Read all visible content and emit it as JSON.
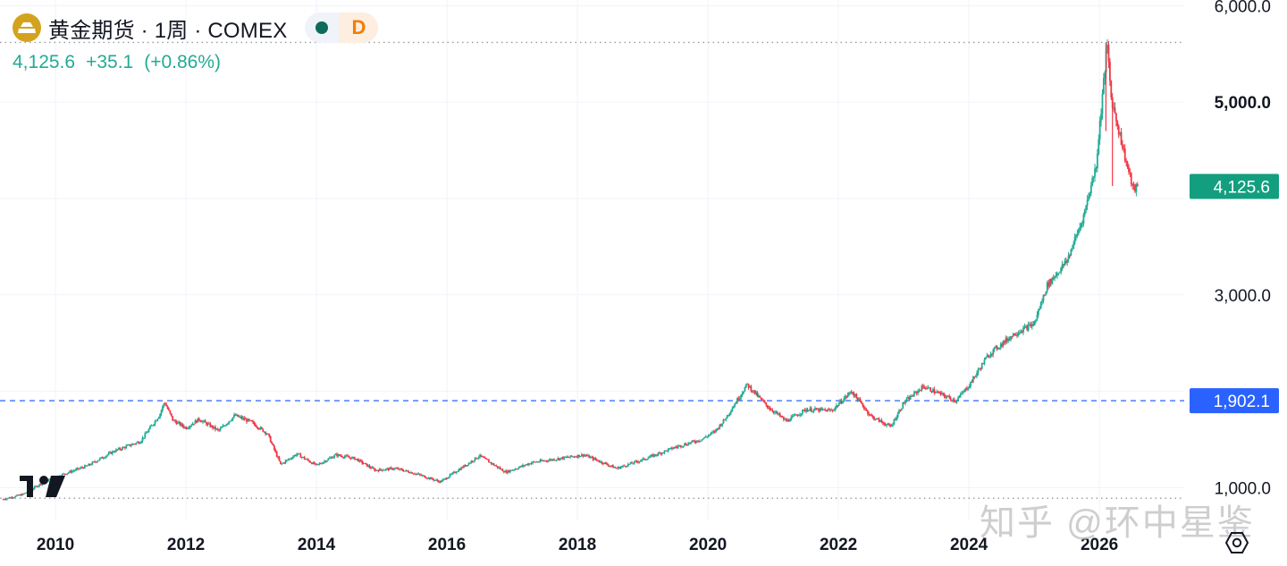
{
  "header": {
    "title": "黄金期货 · 1周 · COMEX",
    "interval_badge": "D",
    "last": "4,125.6",
    "change": "+35.1",
    "change_pct": "(+0.86%)"
  },
  "watermark": "知乎 @环中星鉴",
  "colors": {
    "up": "#22ab94",
    "down": "#f23645",
    "price_tag_bg": "#139f7f",
    "line_tag_bg": "#2962ff",
    "line": "#2962ff",
    "dotted": "#9598a1",
    "grid": "#f0f3fa",
    "text": "#131722"
  },
  "icons": [
    "gold-symbol-icon",
    "tradingview-logo-icon",
    "settings-icon"
  ],
  "chart_data": {
    "type": "line",
    "title": "黄金期货 · 1周 · COMEX",
    "style": "candlestick",
    "xlabel": "",
    "ylabel": "",
    "x_ticks": [
      "2010",
      "2012",
      "2014",
      "2016",
      "2018",
      "2020",
      "2022",
      "2024",
      "2026"
    ],
    "y_ticks": [
      "1,000.0",
      "3,000.0",
      "5,000.0",
      "6,000.0"
    ],
    "y_ticks_bold": [
      "5,000.0"
    ],
    "xlim": [
      2009.15,
      2027.3
    ],
    "ylim": [
      660,
      6060
    ],
    "grid": true,
    "series": [
      {
        "points": [
          [
            2009.2,
            880
          ],
          [
            2009.5,
            930
          ],
          [
            2009.8,
            1050
          ],
          [
            2010.0,
            1110
          ],
          [
            2010.5,
            1230
          ],
          [
            2010.9,
            1380
          ],
          [
            2011.3,
            1480
          ],
          [
            2011.6,
            1760
          ],
          [
            2011.67,
            1890
          ],
          [
            2011.8,
            1700
          ],
          [
            2012.0,
            1620
          ],
          [
            2012.2,
            1710
          ],
          [
            2012.5,
            1590
          ],
          [
            2012.75,
            1750
          ],
          [
            2013.0,
            1680
          ],
          [
            2013.25,
            1560
          ],
          [
            2013.45,
            1240
          ],
          [
            2013.7,
            1350
          ],
          [
            2014.0,
            1230
          ],
          [
            2014.3,
            1340
          ],
          [
            2014.6,
            1300
          ],
          [
            2014.9,
            1180
          ],
          [
            2015.2,
            1200
          ],
          [
            2015.5,
            1150
          ],
          [
            2015.9,
            1060
          ],
          [
            2016.1,
            1150
          ],
          [
            2016.5,
            1330
          ],
          [
            2016.9,
            1160
          ],
          [
            2017.3,
            1260
          ],
          [
            2017.7,
            1300
          ],
          [
            2018.1,
            1340
          ],
          [
            2018.6,
            1200
          ],
          [
            2019.0,
            1290
          ],
          [
            2019.5,
            1420
          ],
          [
            2019.9,
            1500
          ],
          [
            2020.1,
            1580
          ],
          [
            2020.25,
            1700
          ],
          [
            2020.6,
            2070
          ],
          [
            2020.9,
            1850
          ],
          [
            2021.2,
            1690
          ],
          [
            2021.5,
            1810
          ],
          [
            2021.9,
            1800
          ],
          [
            2022.2,
            2000
          ],
          [
            2022.5,
            1740
          ],
          [
            2022.8,
            1630
          ],
          [
            2023.0,
            1880
          ],
          [
            2023.3,
            2050
          ],
          [
            2023.8,
            1900
          ],
          [
            2024.0,
            2060
          ],
          [
            2024.3,
            2380
          ],
          [
            2024.7,
            2600
          ],
          [
            2025.0,
            2700
          ],
          [
            2025.2,
            3100
          ],
          [
            2025.5,
            3350
          ],
          [
            2025.75,
            3800
          ],
          [
            2025.95,
            4350
          ],
          [
            2026.05,
            5100
          ],
          [
            2026.12,
            5600
          ],
          [
            2026.18,
            5050
          ],
          [
            2026.3,
            4700
          ],
          [
            2026.42,
            4350
          ],
          [
            2026.52,
            4090
          ],
          [
            2026.6,
            4125.6
          ]
        ]
      }
    ],
    "reference_lines": [
      {
        "value": 1902.1,
        "label": "1,902.1",
        "style": "dashed"
      },
      {
        "value": 5620,
        "style": "dotted"
      },
      {
        "value": 890,
        "style": "dotted"
      }
    ],
    "last_price": {
      "value": 4125.6,
      "label": "4,125.6"
    }
  }
}
